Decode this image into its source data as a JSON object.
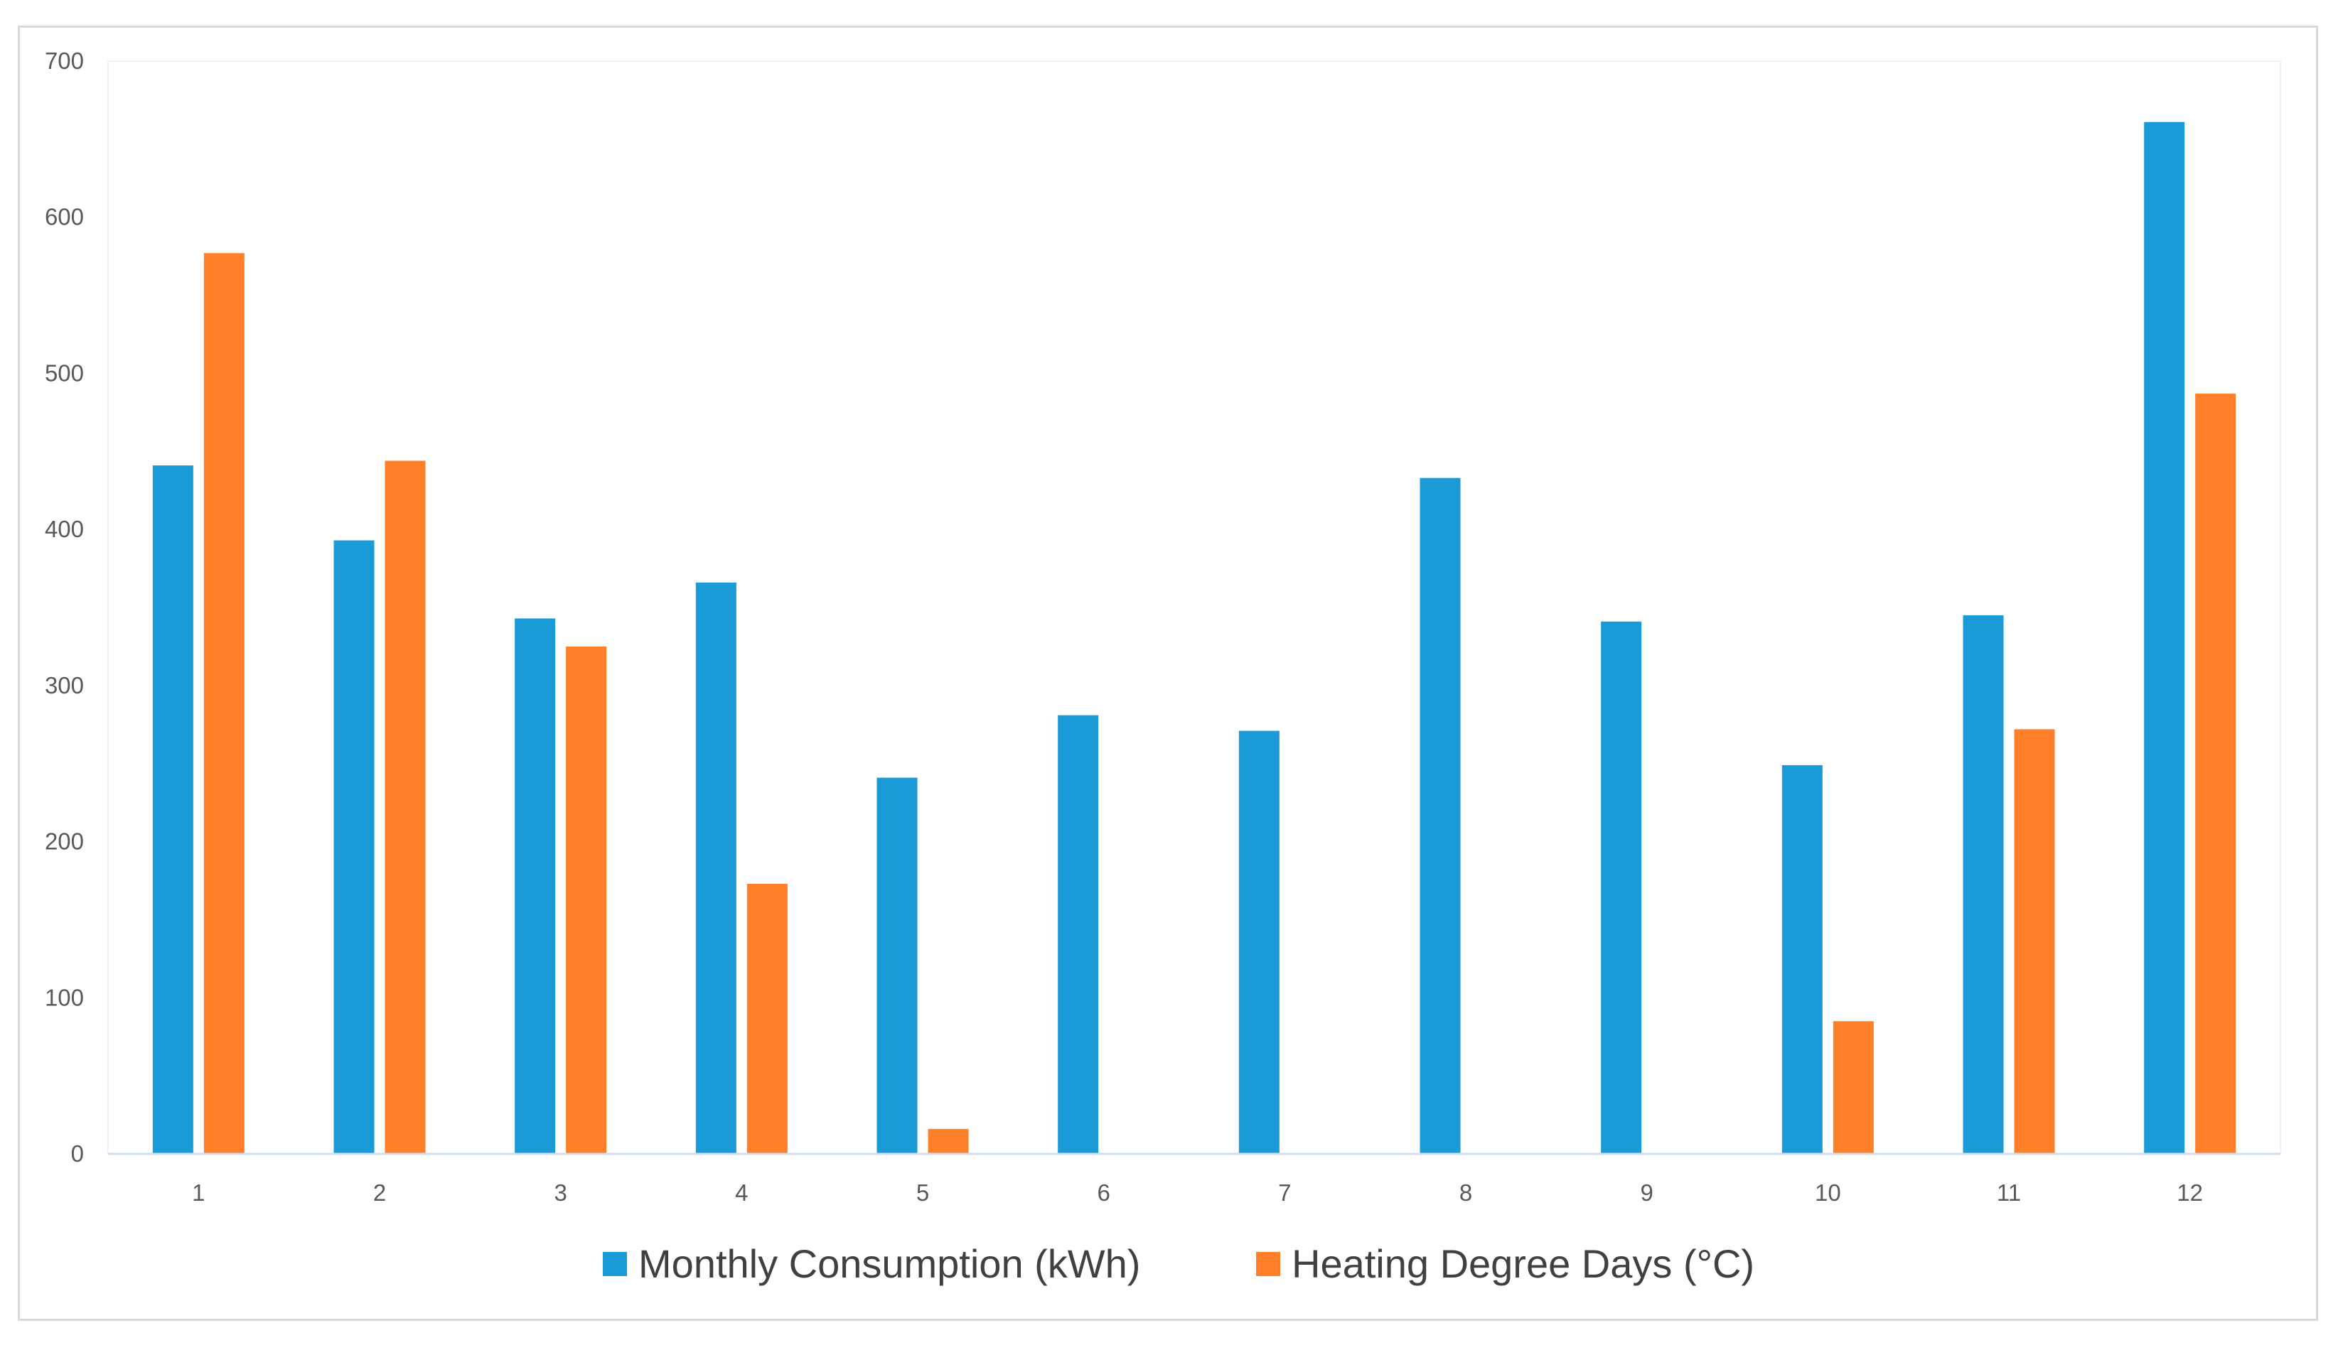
{
  "chart_data": {
    "type": "bar",
    "title": "",
    "xlabel": "",
    "ylabel": "",
    "categories": [
      "1",
      "2",
      "3",
      "4",
      "5",
      "6",
      "7",
      "8",
      "9",
      "10",
      "11",
      "12"
    ],
    "ylim": [
      0,
      700
    ],
    "yticks": [
      "0",
      "100",
      "200",
      "300",
      "400",
      "500",
      "600",
      "700"
    ],
    "grid": false,
    "legend_position": "bottom-center",
    "series": [
      {
        "name": "Monthly Consumption (kWh)",
        "color": "#1a9bd7",
        "values": [
          441,
          393,
          343,
          366,
          241,
          281,
          271,
          433,
          341,
          249,
          345,
          661
        ]
      },
      {
        "name": "Heating Degree Days (°C)",
        "color": "#ff8029",
        "values": [
          577,
          444,
          325,
          173,
          16,
          0,
          0,
          0,
          0,
          85,
          272,
          487
        ]
      }
    ]
  }
}
